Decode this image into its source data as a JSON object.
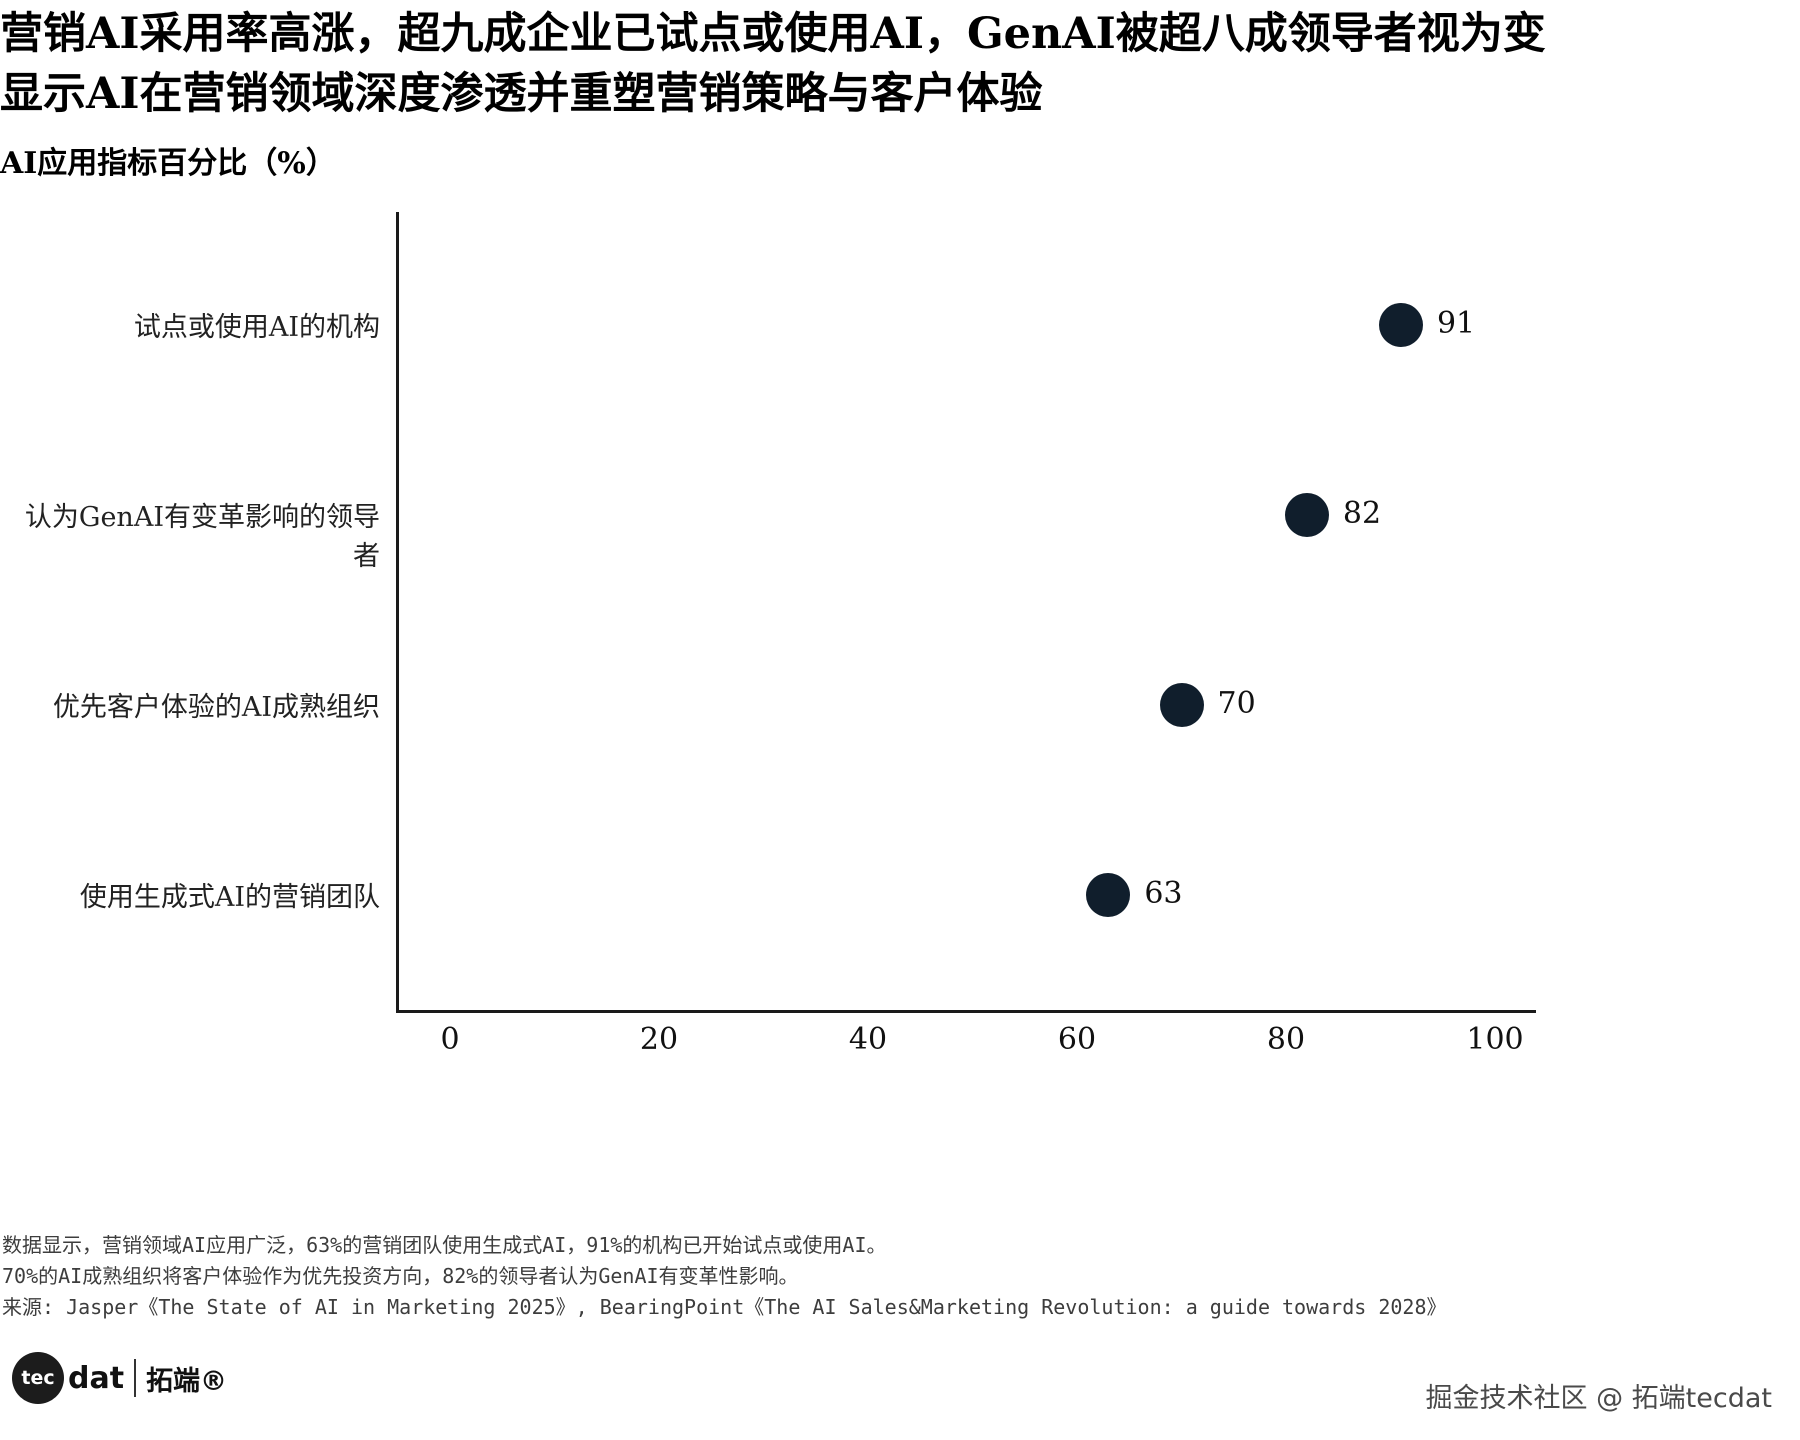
{
  "page": {
    "title_line1": "营销AI采用率高涨，超九成企业已试点或使用AI，GenAI被超八成领导者视为变",
    "title_line2": "显示AI在营销领域深度渗透并重塑营销策略与客户体验",
    "subtitle": "AI应用指标百分比（%）"
  },
  "chart_data": {
    "type": "scatter",
    "orientation": "horizontal",
    "title": "AI应用指标百分比（%）",
    "categories": [
      "试点或使用AI的机构",
      "认为GenAI有变革影响的领导者",
      "优先客户体验的AI成熟组织",
      "使用生成式AI的营销团队"
    ],
    "values": [
      91,
      82,
      70,
      63
    ],
    "xlim": [
      0,
      100
    ],
    "xticks": [
      0,
      20,
      40,
      60,
      80,
      100
    ],
    "grid": false,
    "legend": "none",
    "dot_color": "#101e2c",
    "value_labels": [
      91,
      82,
      70,
      63
    ]
  },
  "footnotes": {
    "line1": "数据显示，营销领域AI应用广泛，63%的营销团队使用生成式AI，91%的机构已开始试点或使用AI。",
    "line2": "70%的AI成熟组织将客户体验作为优先投资方向，82%的领导者认为GenAI有变革性影响。",
    "line3": "来源: Jasper《The State of AI in Marketing 2025》, BearingPoint《The AI Sales&Marketing Revolution: a guide towards 2028》"
  },
  "branding": {
    "logo_tec": "tec",
    "logo_dat": "dat",
    "logo_cn": "拓端®",
    "watermark": "掘金技术社区 @ 拓端tecdat"
  }
}
